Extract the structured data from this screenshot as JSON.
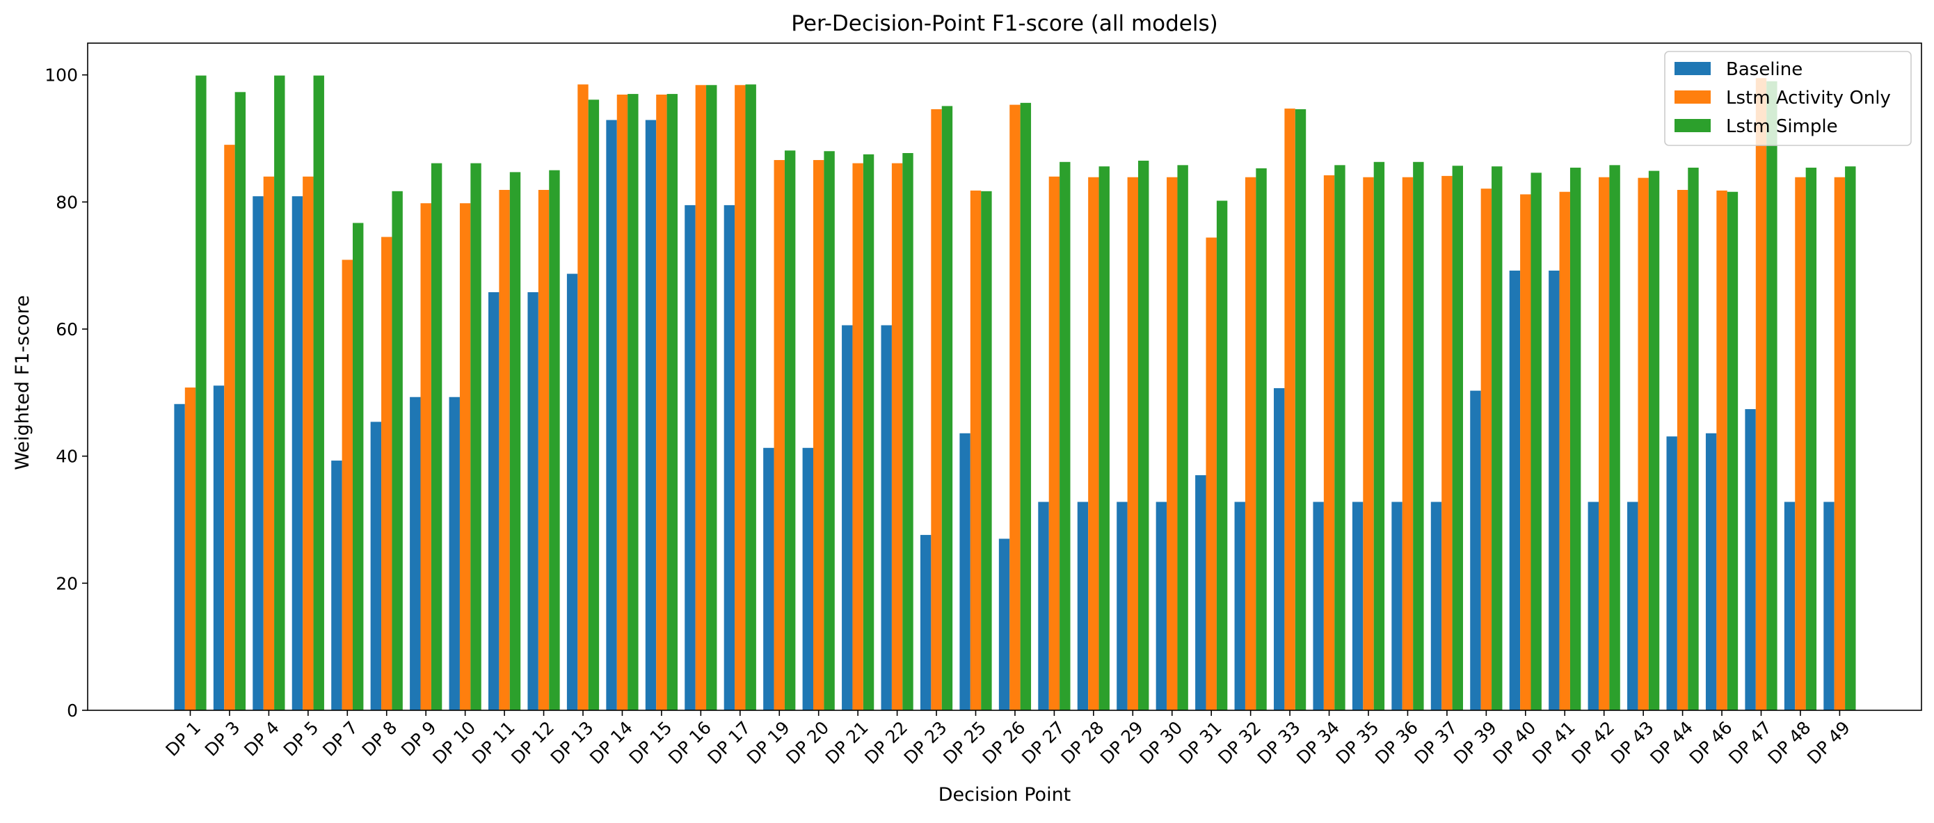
{
  "chart_data": {
    "type": "bar",
    "title": "Per-Decision-Point F1-score (all models)",
    "xlabel": "Decision Point",
    "ylabel": "Weighted F1-score",
    "ylim": [
      0,
      105
    ],
    "yticks": [
      0,
      20,
      40,
      60,
      80,
      100
    ],
    "grid": false,
    "legend_position": "top-right",
    "categories": [
      "DP 1",
      "DP 3",
      "DP 4",
      "DP 5",
      "DP 7",
      "DP 8",
      "DP 9",
      "DP 10",
      "DP 11",
      "DP 12",
      "DP 13",
      "DP 14",
      "DP 15",
      "DP 16",
      "DP 17",
      "DP 19",
      "DP 20",
      "DP 21",
      "DP 22",
      "DP 23",
      "DP 25",
      "DP 26",
      "DP 27",
      "DP 28",
      "DP 29",
      "DP 30",
      "DP 31",
      "DP 32",
      "DP 33",
      "DP 34",
      "DP 35",
      "DP 36",
      "DP 37",
      "DP 39",
      "DP 40",
      "DP 41",
      "DP 42",
      "DP 43",
      "DP 44",
      "DP 46",
      "DP 47",
      "DP 48",
      "DP 49"
    ],
    "series": [
      {
        "name": "Baseline",
        "color": "#1f77b4",
        "values": [
          48.2,
          51.1,
          80.9,
          80.9,
          39.3,
          45.4,
          49.3,
          49.3,
          65.8,
          65.8,
          68.7,
          92.9,
          92.9,
          79.5,
          79.5,
          41.3,
          41.3,
          60.6,
          60.6,
          27.6,
          43.6,
          27.0,
          32.8,
          32.8,
          32.8,
          32.8,
          37.0,
          32.8,
          50.7,
          32.8,
          32.8,
          32.8,
          32.8,
          50.3,
          69.2,
          69.2,
          32.8,
          32.8,
          43.1,
          43.6,
          47.4,
          32.8,
          32.8
        ]
      },
      {
        "name": "Lstm Activity Only",
        "color": "#ff7f0e",
        "values": [
          50.8,
          89.0,
          84.0,
          84.0,
          70.9,
          74.5,
          79.8,
          79.8,
          81.9,
          81.9,
          98.5,
          96.9,
          96.9,
          98.4,
          98.4,
          86.6,
          86.6,
          86.1,
          86.1,
          94.6,
          81.8,
          95.3,
          84.0,
          83.9,
          83.9,
          83.9,
          74.4,
          83.9,
          94.7,
          84.2,
          83.9,
          83.9,
          84.1,
          82.1,
          81.2,
          81.6,
          83.9,
          83.8,
          81.9,
          81.8,
          99.5,
          83.9,
          83.9
        ]
      },
      {
        "name": "Lstm Simple",
        "color": "#2ca02c",
        "values": [
          99.9,
          97.3,
          99.9,
          99.9,
          76.7,
          81.7,
          86.1,
          86.1,
          84.7,
          85.0,
          96.1,
          97.0,
          97.0,
          98.4,
          98.5,
          88.1,
          88.0,
          87.5,
          87.7,
          95.1,
          81.7,
          95.6,
          86.3,
          85.6,
          86.5,
          85.8,
          80.2,
          85.3,
          94.6,
          85.8,
          86.3,
          86.3,
          85.7,
          85.6,
          84.6,
          85.4,
          85.8,
          84.9,
          85.4,
          81.6,
          99.0,
          85.4,
          85.6
        ]
      }
    ]
  }
}
